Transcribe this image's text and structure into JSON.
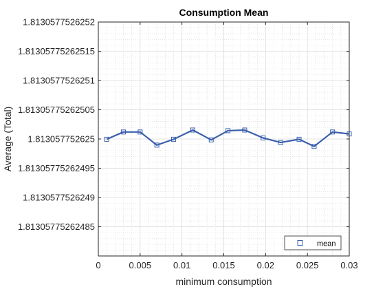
{
  "chart_data": {
    "type": "line",
    "title": "Consumption Mean",
    "xlabel": "minimum consumption",
    "ylabel": "Average (Total)",
    "xlim": [
      0,
      0.03
    ],
    "ylim": [
      1.8130577526248,
      1.8130577526252
    ],
    "x_ticks": [
      {
        "value": 0,
        "label": "0"
      },
      {
        "value": 0.005,
        "label": "0.005"
      },
      {
        "value": 0.01,
        "label": "0.01"
      },
      {
        "value": 0.015,
        "label": "0.015"
      },
      {
        "value": 0.02,
        "label": "0.02"
      },
      {
        "value": 0.025,
        "label": "0.025"
      },
      {
        "value": 0.03,
        "label": "0.03"
      }
    ],
    "y_ticks": [
      {
        "value": 1.81305775262485,
        "label": "1.81305775262485"
      },
      {
        "value": 1.8130577526249,
        "label": "1.8130577526249"
      },
      {
        "value": 1.81305775262495,
        "label": "1.81305775262495"
      },
      {
        "value": 1.813057752625,
        "label": "1.813057752625"
      },
      {
        "value": 1.81305775262505,
        "label": "1.81305775262505"
      },
      {
        "value": 1.8130577526251,
        "label": "1.8130577526251"
      },
      {
        "value": 1.81305775262515,
        "label": "1.81305775262515"
      },
      {
        "value": 1.8130577526252,
        "label": "1.8130577526252"
      }
    ],
    "grid": true,
    "minor_grid": true,
    "legend_position": "bottom-right",
    "series": [
      {
        "name": "mean",
        "color": "#3A5FAD",
        "marker": "square",
        "x": [
          0.001,
          0.003,
          0.005,
          0.007,
          0.009,
          0.0113,
          0.0135,
          0.0155,
          0.0175,
          0.0197,
          0.0218,
          0.024,
          0.0258,
          0.028,
          0.03
        ],
        "y": [
          1.8130577526249996,
          1.813057752625012,
          1.813057752625012,
          1.8130577526249896,
          1.8130577526249996,
          1.8130577526250153,
          1.8130577526249985,
          1.8130577526250142,
          1.8130577526250153,
          1.8130577526250018,
          1.813057752624994,
          1.8130577526249996,
          1.8130577526249874,
          1.813057752625012,
          1.8130577526250087
        ]
      }
    ]
  }
}
